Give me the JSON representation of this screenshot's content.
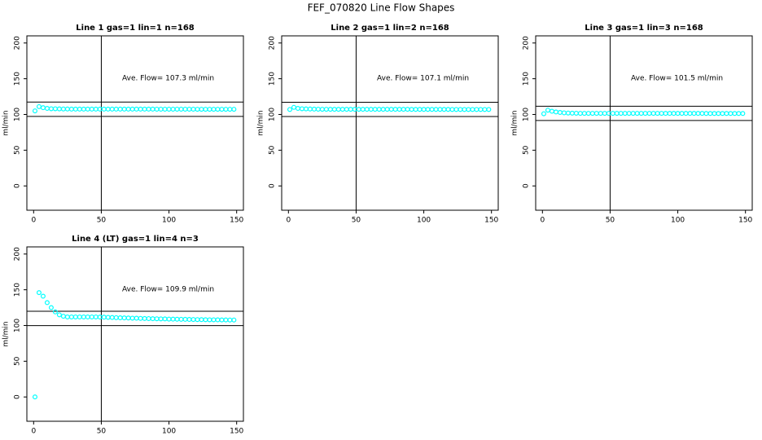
{
  "title": "FEF_070820  Line Flow Shapes",
  "chart_data": [
    {
      "type": "scatter",
      "title": "Line 1 gas=1 lin=1 n=168",
      "ylabel": "ml/min",
      "annotation": "Ave. Flow=  107.3  ml/min",
      "color": "#00ffff",
      "xlim": [
        -5,
        155
      ],
      "ylim": [
        -34,
        210
      ],
      "xticks": [
        0,
        50,
        100,
        150
      ],
      "yticks": [
        0,
        50,
        100,
        150,
        200
      ],
      "hlines": [
        117.3,
        97.3
      ],
      "vlines": [
        50
      ],
      "x": [
        1,
        4,
        7,
        10,
        13,
        16,
        19,
        22,
        25,
        28,
        31,
        34,
        37,
        40,
        43,
        46,
        49,
        52,
        55,
        58,
        61,
        64,
        67,
        70,
        73,
        76,
        79,
        82,
        85,
        88,
        91,
        94,
        97,
        100,
        103,
        106,
        109,
        112,
        115,
        118,
        121,
        124,
        127,
        130,
        133,
        136,
        139,
        142,
        145,
        148
      ],
      "values": [
        105,
        111,
        109.5,
        108.5,
        108,
        108,
        107.8,
        107.7,
        107.6,
        107.5,
        107.5,
        107.5,
        107.5,
        107.5,
        107.5,
        107.5,
        107.5,
        107.5,
        107.5,
        107.5,
        107.5,
        107.5,
        107.5,
        107.5,
        107.5,
        107.5,
        107.5,
        107.5,
        107.5,
        107.5,
        107.4,
        107.4,
        107.4,
        107.4,
        107.4,
        107.4,
        107.4,
        107.4,
        107.4,
        107.4,
        107.3,
        107.3,
        107.3,
        107.3,
        107.3,
        107.3,
        107.3,
        107.3,
        107.3,
        107.3
      ]
    },
    {
      "type": "scatter",
      "title": "Line 2 gas=1 lin=2 n=168",
      "ylabel": "ml/min",
      "annotation": "Ave. Flow=  107.1  ml/min",
      "color": "#00ffff",
      "xlim": [
        -5,
        155
      ],
      "ylim": [
        -34,
        210
      ],
      "xticks": [
        0,
        50,
        100,
        150
      ],
      "yticks": [
        0,
        50,
        100,
        150,
        200
      ],
      "hlines": [
        117.1,
        97.1
      ],
      "vlines": [
        50
      ],
      "x": [
        1,
        4,
        7,
        10,
        13,
        16,
        19,
        22,
        25,
        28,
        31,
        34,
        37,
        40,
        43,
        46,
        49,
        52,
        55,
        58,
        61,
        64,
        67,
        70,
        73,
        76,
        79,
        82,
        85,
        88,
        91,
        94,
        97,
        100,
        103,
        106,
        109,
        112,
        115,
        118,
        121,
        124,
        127,
        130,
        133,
        136,
        139,
        142,
        145,
        148
      ],
      "values": [
        107,
        110,
        108.5,
        108,
        107.8,
        107.6,
        107.5,
        107.4,
        107.3,
        107.3,
        107.2,
        107.2,
        107.2,
        107.2,
        107.2,
        107.2,
        107.2,
        107.2,
        107.2,
        107.2,
        107.2,
        107.2,
        107.2,
        107.2,
        107.2,
        107.2,
        107.2,
        107.2,
        107.2,
        107.2,
        107.1,
        107.1,
        107.1,
        107.1,
        107.1,
        107.1,
        107.1,
        107.1,
        107.1,
        107.1,
        107,
        107,
        107,
        107,
        107,
        107,
        107,
        107,
        107,
        107
      ]
    },
    {
      "type": "scatter",
      "title": "Line 3 gas=1 lin=3 n=168",
      "ylabel": "ml/min",
      "annotation": "Ave. Flow=  101.5  ml/min",
      "color": "#00ffff",
      "xlim": [
        -5,
        155
      ],
      "ylim": [
        -34,
        210
      ],
      "xticks": [
        0,
        50,
        100,
        150
      ],
      "yticks": [
        0,
        50,
        100,
        150,
        200
      ],
      "hlines": [
        111.5,
        91.5
      ],
      "vlines": [
        50
      ],
      "x": [
        1,
        4,
        7,
        10,
        13,
        16,
        19,
        22,
        25,
        28,
        31,
        34,
        37,
        40,
        43,
        46,
        49,
        52,
        55,
        58,
        61,
        64,
        67,
        70,
        73,
        76,
        79,
        82,
        85,
        88,
        91,
        94,
        97,
        100,
        103,
        106,
        109,
        112,
        115,
        118,
        121,
        124,
        127,
        130,
        133,
        136,
        139,
        142,
        145,
        148
      ],
      "values": [
        101,
        106,
        104.5,
        103.5,
        102.8,
        102.3,
        102,
        101.8,
        101.7,
        101.6,
        101.6,
        101.6,
        101.6,
        101.6,
        101.6,
        101.6,
        101.6,
        101.6,
        101.6,
        101.6,
        101.6,
        101.6,
        101.6,
        101.6,
        101.6,
        101.6,
        101.6,
        101.6,
        101.6,
        101.6,
        101.5,
        101.5,
        101.5,
        101.5,
        101.5,
        101.5,
        101.5,
        101.5,
        101.5,
        101.5,
        101.4,
        101.4,
        101.4,
        101.4,
        101.4,
        101.4,
        101.4,
        101.4,
        101.4,
        101.4
      ]
    },
    {
      "type": "scatter",
      "title": "Line 4 (LT) gas=1 lin=4 n=3",
      "ylabel": "ml/min",
      "annotation": "Ave. Flow=  109.9  ml/min",
      "color": "#00ffff",
      "xlim": [
        -5,
        155
      ],
      "ylim": [
        -34,
        210
      ],
      "xticks": [
        0,
        50,
        100,
        150
      ],
      "yticks": [
        0,
        50,
        100,
        150,
        200
      ],
      "hlines": [
        119.9,
        99.9
      ],
      "vlines": [
        50
      ],
      "x": [
        1,
        4,
        7,
        10,
        13,
        16,
        19,
        22,
        25,
        28,
        31,
        34,
        37,
        40,
        43,
        46,
        49,
        52,
        55,
        58,
        61,
        64,
        67,
        70,
        73,
        76,
        79,
        82,
        85,
        88,
        91,
        94,
        97,
        100,
        103,
        106,
        109,
        112,
        115,
        118,
        121,
        124,
        127,
        130,
        133,
        136,
        139,
        142,
        145,
        148
      ],
      "values": [
        0,
        146,
        141,
        132,
        125,
        119,
        115,
        113,
        112,
        112,
        112,
        112,
        112,
        112,
        112,
        112,
        111.8,
        111.6,
        111.4,
        111.2,
        111,
        110.8,
        110.6,
        110.5,
        110.3,
        110.2,
        110,
        109.8,
        109.7,
        109.5,
        109.4,
        109.3,
        109.2,
        109,
        108.9,
        108.8,
        108.7,
        108.6,
        108.5,
        108.4,
        108.3,
        108.2,
        108.1,
        108,
        108,
        107.9,
        107.8,
        107.8,
        107.7,
        107.7
      ]
    }
  ]
}
